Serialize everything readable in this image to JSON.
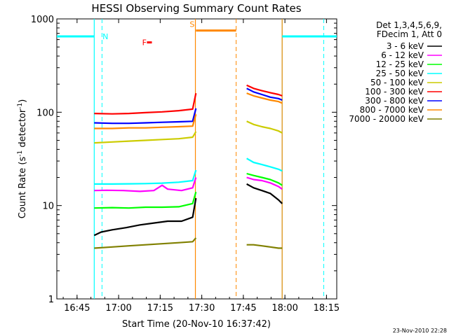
{
  "chart_data": {
    "type": "line",
    "title": "HESSI Observing Summary Count Rates",
    "xlabel": "Start Time (20-Nov-10 16:37:42)",
    "ylabel_main": "Count Rate (s",
    "ylabel_sup1": "-1",
    "ylabel_mid": " detector",
    "ylabel_sup2": "-1",
    "ylabel_end": ")",
    "x_unit": "minutes since 16:37:42",
    "xlim": [
      0,
      101
    ],
    "ylim": [
      1,
      1000
    ],
    "y_scale": "log",
    "x_ticks": [
      {
        "label": "16:45",
        "value": 7.3
      },
      {
        "label": "17:00",
        "value": 22.3
      },
      {
        "label": "17:15",
        "value": 37.3
      },
      {
        "label": "17:30",
        "value": 52.3
      },
      {
        "label": "17:45",
        "value": 67.3
      },
      {
        "label": "18:00",
        "value": 82.3
      },
      {
        "label": "18:15",
        "value": 97.3
      }
    ],
    "y_ticks": [
      {
        "label": "1",
        "value": 1
      },
      {
        "label": "10",
        "value": 10
      },
      {
        "label": "100",
        "value": 100
      },
      {
        "label": "1000",
        "value": 1000
      }
    ],
    "legend_header": [
      "Det 1,3,4,5,6,9,",
      "FDecim 1, Att 0"
    ],
    "legend_placement": "right",
    "segments": [
      [
        13.5,
        50.2
      ],
      [
        68.5,
        81.3
      ]
    ],
    "series": [
      {
        "name": "3 - 6 keV",
        "color": "#000000",
        "seg1": [
          [
            13.5,
            4.8
          ],
          [
            16,
            5.2
          ],
          [
            20,
            5.5
          ],
          [
            25,
            5.8
          ],
          [
            30,
            6.2
          ],
          [
            35,
            6.5
          ],
          [
            40,
            6.8
          ],
          [
            45,
            6.8
          ],
          [
            49,
            7.5
          ],
          [
            50.2,
            12
          ]
        ],
        "seg2": [
          [
            68.5,
            17
          ],
          [
            71,
            15.5
          ],
          [
            74,
            14.5
          ],
          [
            77,
            13.5
          ],
          [
            80,
            11.5
          ],
          [
            81.3,
            10.5
          ]
        ]
      },
      {
        "name": "6 - 12 keV",
        "color": "#ff00ff",
        "seg1": [
          [
            13.5,
            14.5
          ],
          [
            18,
            14.6
          ],
          [
            24,
            14.5
          ],
          [
            30,
            14.2
          ],
          [
            35,
            14.5
          ],
          [
            38,
            16.5
          ],
          [
            40,
            15
          ],
          [
            45,
            14.5
          ],
          [
            49,
            15.5
          ],
          [
            50.2,
            20
          ]
        ],
        "seg2": [
          [
            68.5,
            20
          ],
          [
            71,
            19
          ],
          [
            74,
            18.5
          ],
          [
            77,
            17.5
          ],
          [
            80,
            16
          ],
          [
            81.3,
            15
          ]
        ]
      },
      {
        "name": "12 - 25 keV",
        "color": "#00ff00",
        "seg1": [
          [
            13.5,
            9.4
          ],
          [
            20,
            9.5
          ],
          [
            26,
            9.4
          ],
          [
            32,
            9.6
          ],
          [
            38,
            9.6
          ],
          [
            44,
            9.7
          ],
          [
            49,
            10.5
          ],
          [
            50.2,
            14
          ]
        ],
        "seg2": [
          [
            68.5,
            22
          ],
          [
            71,
            21
          ],
          [
            74,
            20
          ],
          [
            77,
            19
          ],
          [
            80,
            17.5
          ],
          [
            81.3,
            16.5
          ]
        ]
      },
      {
        "name": "25 - 50 keV",
        "color": "#00ffff",
        "seg1": [
          [
            13.5,
            17
          ],
          [
            20,
            17
          ],
          [
            26,
            17.1
          ],
          [
            32,
            17.2
          ],
          [
            38,
            17.4
          ],
          [
            44,
            17.8
          ],
          [
            49,
            18.5
          ],
          [
            50.2,
            24
          ]
        ],
        "seg2": [
          [
            68.5,
            32
          ],
          [
            71,
            29
          ],
          [
            74,
            27.5
          ],
          [
            77,
            26
          ],
          [
            80,
            24.5
          ],
          [
            81.3,
            23.5
          ]
        ]
      },
      {
        "name": "50 - 100 keV",
        "color": "#cccc00",
        "seg1": [
          [
            13.5,
            47
          ],
          [
            20,
            48
          ],
          [
            26,
            49
          ],
          [
            32,
            50
          ],
          [
            38,
            51
          ],
          [
            44,
            52
          ],
          [
            49,
            54
          ],
          [
            50.2,
            62
          ]
        ],
        "seg2": [
          [
            68.5,
            80
          ],
          [
            71,
            74
          ],
          [
            74,
            70
          ],
          [
            77,
            67
          ],
          [
            80,
            63
          ],
          [
            81.3,
            60
          ]
        ]
      },
      {
        "name": "100 - 300 keV",
        "color": "#ff0000",
        "seg1": [
          [
            13.5,
            97
          ],
          [
            20,
            96
          ],
          [
            26,
            97
          ],
          [
            32,
            99
          ],
          [
            38,
            101
          ],
          [
            44,
            104
          ],
          [
            49,
            108
          ],
          [
            50.2,
            160
          ]
        ],
        "seg2": [
          [
            68.5,
            195
          ],
          [
            71,
            180
          ],
          [
            74,
            170
          ],
          [
            77,
            162
          ],
          [
            80,
            155
          ],
          [
            81.3,
            150
          ]
        ]
      },
      {
        "name": "300 - 800 keV",
        "color": "#0000ff",
        "seg1": [
          [
            13.5,
            77
          ],
          [
            20,
            76
          ],
          [
            26,
            76
          ],
          [
            32,
            77
          ],
          [
            38,
            78
          ],
          [
            44,
            79
          ],
          [
            49,
            80
          ],
          [
            50.2,
            110
          ]
        ],
        "seg2": [
          [
            68.5,
            180
          ],
          [
            71,
            165
          ],
          [
            74,
            155
          ],
          [
            77,
            145
          ],
          [
            80,
            140
          ],
          [
            81.3,
            135
          ]
        ]
      },
      {
        "name": "800 - 7000 keV",
        "color": "#ff8800",
        "seg1": [
          [
            13.5,
            67
          ],
          [
            20,
            67
          ],
          [
            26,
            68
          ],
          [
            32,
            68
          ],
          [
            38,
            69
          ],
          [
            44,
            70
          ],
          [
            49,
            71
          ],
          [
            50.2,
            95
          ]
        ],
        "seg2": [
          [
            68.5,
            160
          ],
          [
            71,
            150
          ],
          [
            74,
            142
          ],
          [
            77,
            135
          ],
          [
            80,
            130
          ],
          [
            81.3,
            125
          ]
        ]
      },
      {
        "name": "7000 - 20000 keV",
        "color": "#808000",
        "seg1": [
          [
            13.5,
            3.5
          ],
          [
            20,
            3.6
          ],
          [
            26,
            3.7
          ],
          [
            32,
            3.8
          ],
          [
            38,
            3.9
          ],
          [
            44,
            4.0
          ],
          [
            49,
            4.1
          ],
          [
            50.2,
            4.5
          ]
        ],
        "seg2": [
          [
            68.5,
            3.8
          ],
          [
            71,
            3.8
          ],
          [
            74,
            3.7
          ],
          [
            77,
            3.6
          ],
          [
            80,
            3.5
          ],
          [
            81.3,
            3.5
          ]
        ]
      }
    ],
    "markers": {
      "night_label": "N",
      "saa_label": "S",
      "flare_label": "F",
      "night_color": "#00ffff",
      "saa_color": "#ff8800",
      "flare_color": "#ff0000",
      "night_bars": [
        [
          0,
          13.5
        ],
        [
          81.3,
          101
        ]
      ],
      "saa_bar": [
        50.2,
        64.7
      ],
      "flare_bar": [
        32.5,
        34.3
      ],
      "night_level": 650,
      "saa_level": 750,
      "flare_level": 560,
      "night_solid_x": [
        13.5,
        81.3
      ],
      "night_dashed_x": [
        16.3,
        96.3
      ],
      "saa_solid_x": [
        50.0,
        81.3
      ],
      "saa_dashed_x": [
        64.7
      ],
      "night_label_x": 16.5,
      "saa_label_x": 49.7,
      "flare_label_x": 30.8
    }
  },
  "footer_date": "23-Nov-2010 22:28"
}
